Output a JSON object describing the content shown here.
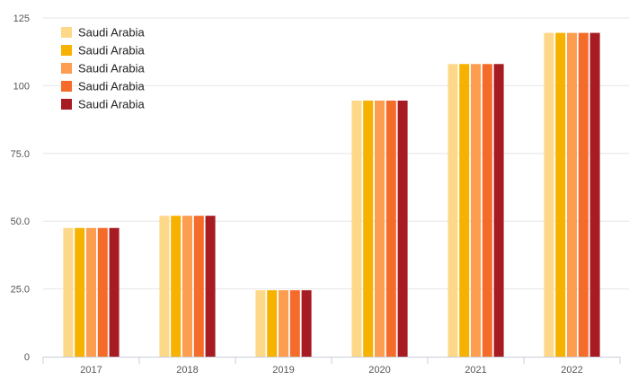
{
  "chart_data": {
    "type": "bar",
    "title": "",
    "xlabel": "",
    "ylabel": "",
    "categories": [
      "2017",
      "2018",
      "2019",
      "2020",
      "2021",
      "2022"
    ],
    "ylim": [
      0,
      125
    ],
    "yticks": [
      {
        "value": 0,
        "label": "0"
      },
      {
        "value": 25,
        "label": "25.0"
      },
      {
        "value": 50,
        "label": "50.0"
      },
      {
        "value": 75,
        "label": "75.0"
      },
      {
        "value": 100,
        "label": "100"
      },
      {
        "value": 125,
        "label": "125"
      }
    ],
    "grid": true,
    "legend_position": "top-left",
    "series": [
      {
        "name": "Saudi Arabia",
        "color": "#fdd888",
        "values": [
          47.5,
          52,
          24.5,
          94.5,
          108,
          119.5
        ]
      },
      {
        "name": "Saudi Arabia",
        "color": "#f7b200",
        "values": [
          47.5,
          52,
          24.5,
          94.5,
          108,
          119.5
        ]
      },
      {
        "name": "Saudi Arabia",
        "color": "#fc9d4f",
        "values": [
          47.5,
          52,
          24.5,
          94.5,
          108,
          119.5
        ]
      },
      {
        "name": "Saudi Arabia",
        "color": "#f56b2a",
        "values": [
          47.5,
          52,
          24.5,
          94.5,
          108,
          119.5
        ]
      },
      {
        "name": "Saudi Arabia",
        "color": "#a71c22",
        "values": [
          47.5,
          52,
          24.5,
          94.5,
          108,
          119.5
        ]
      }
    ]
  }
}
